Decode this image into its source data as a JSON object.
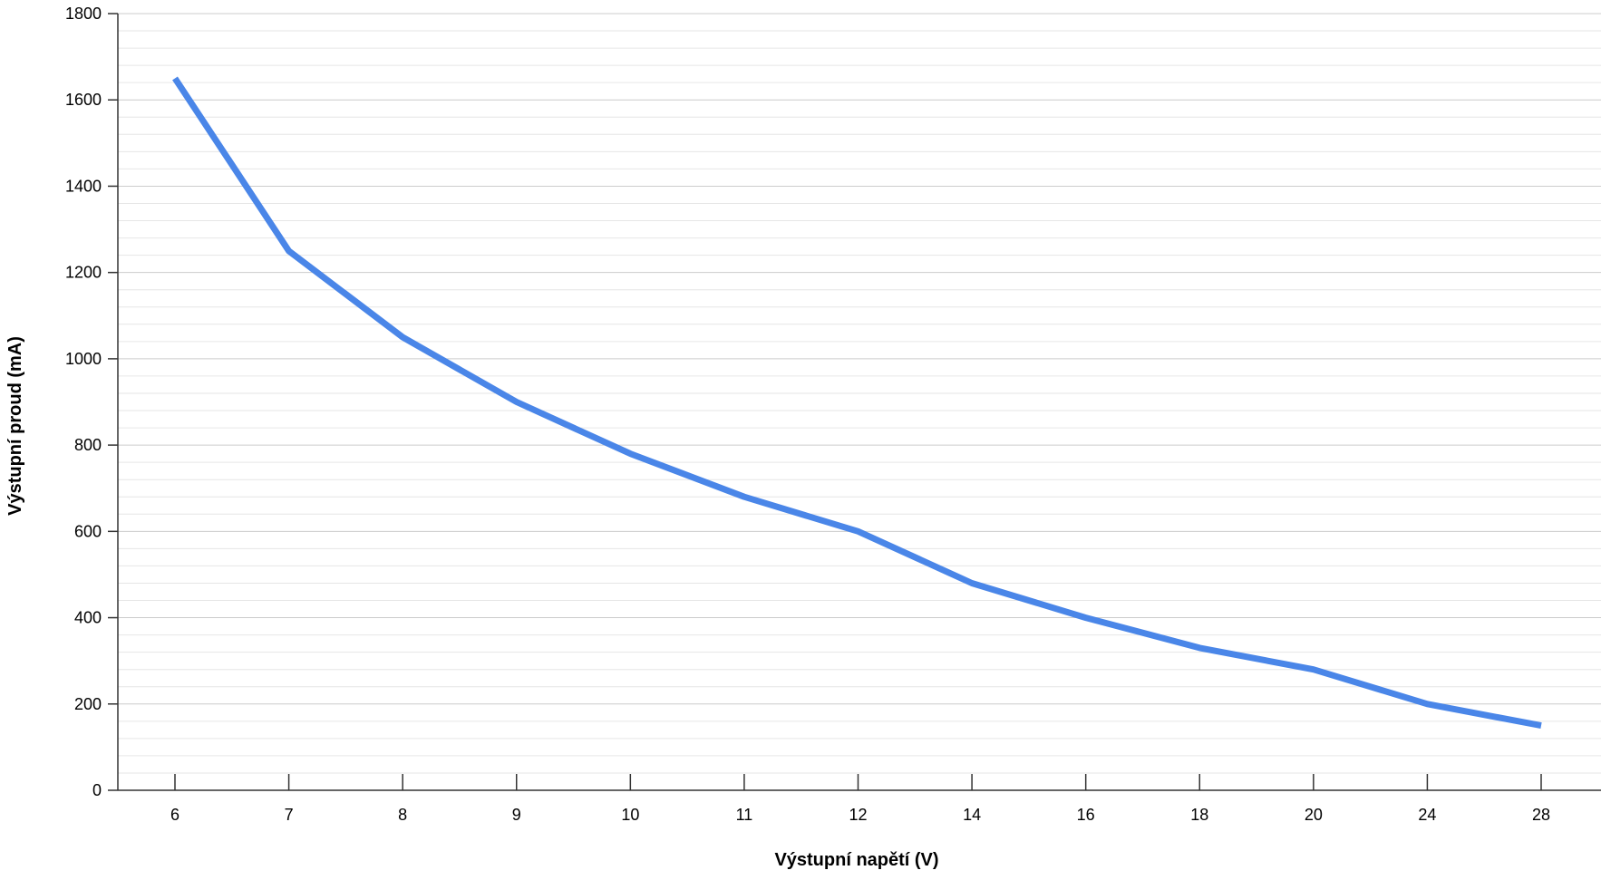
{
  "chart_data": {
    "type": "line",
    "title": "",
    "xlabel": "Výstupní napětí (V)",
    "ylabel": "Výstupní proud (mA)",
    "categories": [
      "6",
      "7",
      "8",
      "9",
      "10",
      "11",
      "12",
      "14",
      "16",
      "18",
      "20",
      "24",
      "28"
    ],
    "series": [
      {
        "values": [
          1650,
          1250,
          1050,
          900,
          780,
          680,
          600,
          480,
          400,
          330,
          280,
          200,
          150
        ]
      }
    ],
    "ylim": [
      0,
      1800
    ],
    "yticks": [
      "0",
      "200",
      "400",
      "600",
      "800",
      "1000",
      "1200",
      "1400",
      "1600",
      "1800"
    ],
    "ytick_values": [
      0,
      200,
      400,
      600,
      800,
      1000,
      1200,
      1400,
      1600,
      1800
    ],
    "y_minor_step": 40,
    "grid": true,
    "legend": "none",
    "line_color": "#4a86e8",
    "major_grid_color": "#cccccc",
    "minor_grid_color": "#e6e6e6",
    "axis_color": "#333333"
  }
}
